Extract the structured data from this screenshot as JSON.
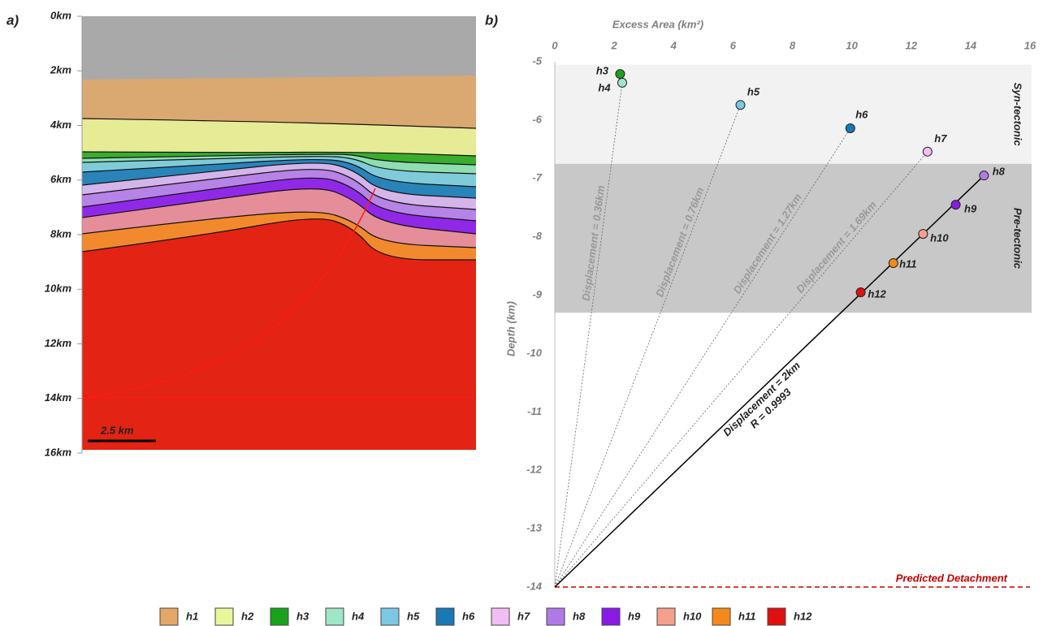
{
  "section": {
    "label": "a)",
    "depth_ticks": [
      "0km",
      "2km",
      "4km",
      "6km",
      "8km",
      "10km",
      "12km",
      "14km",
      "16km"
    ],
    "scale_bar": "2.5 km"
  },
  "chart_data": {
    "type": "scatter",
    "label": "b)",
    "x_label": "Excess Area (km²)",
    "y_label": "Depth (km)",
    "xlim": [
      0,
      16
    ],
    "xticks": [
      0,
      2,
      4,
      6,
      8,
      10,
      12,
      14,
      16
    ],
    "ylim": [
      -14,
      -5
    ],
    "yticks": [
      -5,
      -6,
      -7,
      -8,
      -9,
      -10,
      -11,
      -12,
      -13,
      -14
    ],
    "series": [
      {
        "name": "h3",
        "color": "#1aa31a",
        "x": [
          2.2
        ],
        "values": [
          -5.21
        ]
      },
      {
        "name": "h4",
        "color": "#9ee6c8",
        "x": [
          2.27
        ],
        "values": [
          -5.36
        ]
      },
      {
        "name": "h5",
        "color": "#7cc8e2",
        "x": [
          6.25
        ],
        "values": [
          -5.74
        ]
      },
      {
        "name": "h6",
        "color": "#1a78b4",
        "x": [
          9.95
        ],
        "values": [
          -6.14
        ]
      },
      {
        "name": "h7",
        "color": "#f2bdf2",
        "x": [
          12.55
        ],
        "values": [
          -6.54
        ]
      },
      {
        "name": "h8",
        "color": "#b07ae6",
        "x": [
          14.45
        ],
        "values": [
          -6.95
        ]
      },
      {
        "name": "h9",
        "color": "#8a1ae6",
        "x": [
          13.5
        ],
        "values": [
          -7.45
        ]
      },
      {
        "name": "h10",
        "color": "#f5a08c",
        "x": [
          12.4
        ],
        "values": [
          -7.95
        ]
      },
      {
        "name": "h11",
        "color": "#f58a1a",
        "x": [
          11.4
        ],
        "values": [
          -8.45
        ]
      },
      {
        "name": "h12",
        "color": "#e01010",
        "x": [
          10.3
        ],
        "values": [
          -8.95
        ]
      }
    ],
    "bands": [
      {
        "label": "Syn-tectonic",
        "y": [
          -5.05,
          -6.75
        ],
        "color": "#f2f2f2"
      },
      {
        "label": "Pre-tectonic",
        "y": [
          -6.75,
          -9.3
        ],
        "color": "#c8c8c8"
      }
    ],
    "lines": [
      {
        "label": "Displacement = 0.36km",
        "through": "h4",
        "style": "dashed"
      },
      {
        "label": "Displacement = 0.76km",
        "through": "h5",
        "style": "dashed"
      },
      {
        "label": "Displacement = 1.27km",
        "through": "h6",
        "style": "dashed"
      },
      {
        "label": "Displacement = 1.69km",
        "through": "h7",
        "style": "dashed"
      },
      {
        "label": "Displacement = 2km",
        "r_label": "R = 0.9993",
        "through": "h8",
        "style": "solid"
      }
    ],
    "detachment": {
      "label": "Predicted Detachment",
      "y": -14,
      "color": "#c00000"
    }
  },
  "legend": [
    {
      "name": "h1",
      "color": "#e3a867"
    },
    {
      "name": "h2",
      "color": "#e8f79c"
    },
    {
      "name": "h3",
      "color": "#1aa31a"
    },
    {
      "name": "h4",
      "color": "#9ee6c8"
    },
    {
      "name": "h5",
      "color": "#7cc8e2"
    },
    {
      "name": "h6",
      "color": "#1a78b4"
    },
    {
      "name": "h7",
      "color": "#f2bdf2"
    },
    {
      "name": "h8",
      "color": "#b07ae6"
    },
    {
      "name": "h9",
      "color": "#8a1ae6"
    },
    {
      "name": "h10",
      "color": "#f5a08c"
    },
    {
      "name": "h11",
      "color": "#f58a1a"
    },
    {
      "name": "h12",
      "color": "#e01010"
    }
  ]
}
